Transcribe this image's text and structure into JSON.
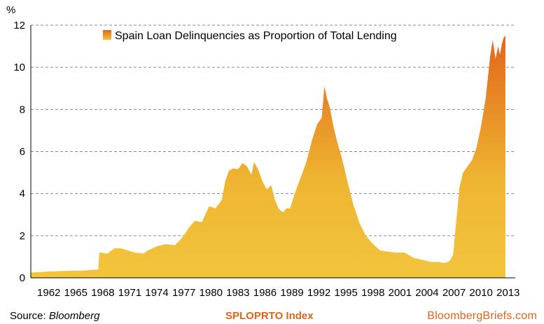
{
  "chart_data": {
    "type": "area",
    "title": "",
    "ylabel": "%",
    "xlabel": "",
    "ylim": [
      0,
      12
    ],
    "xlim": [
      1960.0,
      2013.8
    ],
    "yticks": [
      0,
      2,
      4,
      6,
      8,
      10,
      12
    ],
    "xticks": [
      "1962",
      "1965",
      "1968",
      "1971",
      "1974",
      "1977",
      "1980",
      "1983",
      "1986",
      "1989",
      "1992",
      "1995",
      "1998",
      "2001",
      "2004",
      "2007",
      "2010",
      "2013"
    ],
    "grid": true,
    "legend_position": "top-center",
    "colors": {
      "area_bottom": "#f2c53d",
      "area_top": "#e0661b",
      "grid": "#888888"
    },
    "series": [
      {
        "name": "Spain Loan Delinquencies as Proportion of Total Lending",
        "x": [
          1960.0,
          1962.0,
          1964.0,
          1966.0,
          1967.5,
          1967.6,
          1968.5,
          1969.3,
          1970.0,
          1970.8,
          1971.5,
          1972.5,
          1973.0,
          1974.0,
          1975.0,
          1976.0,
          1976.8,
          1977.6,
          1978.2,
          1979.0,
          1979.8,
          1980.5,
          1981.2,
          1981.6,
          1982.0,
          1982.5,
          1983.0,
          1983.5,
          1984.0,
          1984.5,
          1984.8,
          1985.3,
          1985.7,
          1986.2,
          1986.7,
          1987.1,
          1987.5,
          1988.0,
          1988.4,
          1988.8,
          1989.3,
          1990.0,
          1990.6,
          1991.2,
          1991.8,
          1992.3,
          1992.6,
          1992.9,
          1993.2,
          1993.6,
          1994.0,
          1994.6,
          1995.2,
          1995.8,
          1996.5,
          1997.2,
          1998.0,
          1998.8,
          1999.5,
          2000.5,
          2001.5,
          2002.5,
          2003.5,
          2004.5,
          2005.3,
          2006.0,
          2006.5,
          2006.9,
          2007.2,
          2007.6,
          2008.0,
          2008.5,
          2009.0,
          2009.5,
          2010.0,
          2010.5,
          2011.0,
          2011.3,
          2011.6,
          2011.9,
          2012.1,
          2012.3,
          2012.5,
          2012.7
        ],
        "values": [
          0.25,
          0.3,
          0.33,
          0.35,
          0.4,
          1.2,
          1.15,
          1.4,
          1.4,
          1.3,
          1.2,
          1.15,
          1.3,
          1.5,
          1.6,
          1.55,
          1.9,
          2.4,
          2.7,
          2.65,
          3.4,
          3.3,
          3.7,
          4.6,
          5.1,
          5.2,
          5.15,
          5.45,
          5.3,
          4.9,
          5.5,
          5.1,
          4.6,
          4.2,
          4.4,
          3.7,
          3.3,
          3.1,
          3.3,
          3.3,
          4.0,
          4.8,
          5.5,
          6.5,
          7.3,
          7.6,
          9.1,
          8.5,
          8.1,
          7.2,
          6.5,
          5.6,
          4.5,
          3.5,
          2.6,
          2.0,
          1.6,
          1.3,
          1.25,
          1.2,
          1.2,
          0.95,
          0.85,
          0.75,
          0.75,
          0.7,
          0.8,
          1.1,
          2.5,
          4.3,
          5.0,
          5.3,
          5.6,
          6.2,
          7.2,
          8.5,
          10.5,
          11.3,
          10.4,
          11.0,
          10.6,
          11.1,
          11.4,
          11.5
        ]
      }
    ]
  },
  "footer": {
    "source_label": "Source: ",
    "source_name": "Bloomberg",
    "ticker": "SPLOPRTO Index",
    "brand": "BloombergBriefs.com"
  }
}
